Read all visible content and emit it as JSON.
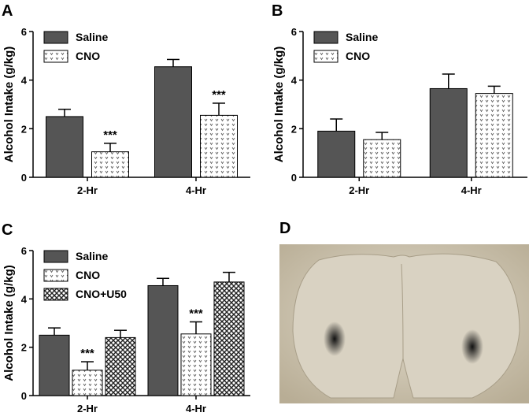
{
  "chart_data": [
    {
      "type": "bar",
      "panel_label": "A",
      "y_label": "Alcohol Intake (g/kg)",
      "categories": [
        "2-Hr",
        "4-Hr"
      ],
      "series": [
        {
          "name": "Saline",
          "color": "#555555",
          "pattern": "solid",
          "values": [
            2.5,
            4.55
          ],
          "errors": [
            0.3,
            0.3
          ]
        },
        {
          "name": "CNO",
          "color": "#ffffff",
          "pattern": "dots",
          "values": [
            1.05,
            2.55
          ],
          "errors": [
            0.35,
            0.5
          ]
        }
      ],
      "annotations": [
        {
          "series": 1,
          "category": 0,
          "text": "***"
        },
        {
          "series": 1,
          "category": 1,
          "text": "***"
        }
      ],
      "ylim": [
        0,
        6
      ],
      "yticks": [
        0,
        2,
        4,
        6
      ],
      "legend": "upper left"
    },
    {
      "type": "bar",
      "panel_label": "B",
      "y_label": "Alcohol Intake (g/kg)",
      "categories": [
        "2-Hr",
        "4-Hr"
      ],
      "series": [
        {
          "name": "Saline",
          "color": "#555555",
          "pattern": "solid",
          "values": [
            1.9,
            3.65
          ],
          "errors": [
            0.5,
            0.6
          ]
        },
        {
          "name": "CNO",
          "color": "#ffffff",
          "pattern": "dots",
          "values": [
            1.55,
            3.45
          ],
          "errors": [
            0.3,
            0.3
          ]
        }
      ],
      "annotations": [],
      "ylim": [
        0,
        6
      ],
      "yticks": [
        0,
        2,
        4,
        6
      ],
      "legend": "upper left"
    },
    {
      "type": "bar",
      "panel_label": "C",
      "y_label": "Alcohol Intake (g/kg)",
      "categories": [
        "2-Hr",
        "4-Hr"
      ],
      "series": [
        {
          "name": "Saline",
          "color": "#555555",
          "pattern": "solid",
          "values": [
            2.5,
            4.55
          ],
          "errors": [
            0.3,
            0.3
          ]
        },
        {
          "name": "CNO",
          "color": "#ffffff",
          "pattern": "dots",
          "values": [
            1.05,
            2.55
          ],
          "errors": [
            0.35,
            0.5
          ]
        },
        {
          "name": "CNO+U50",
          "color": "#ffffff",
          "pattern": "crosshatch",
          "values": [
            2.4,
            4.7
          ],
          "errors": [
            0.3,
            0.4
          ]
        }
      ],
      "annotations": [
        {
          "series": 1,
          "category": 0,
          "text": "***"
        },
        {
          "series": 1,
          "category": 1,
          "text": "***"
        }
      ],
      "ylim": [
        0,
        6
      ],
      "yticks": [
        0,
        2,
        4,
        6
      ],
      "legend": "upper left"
    }
  ],
  "image_panel": {
    "panel_label": "D"
  }
}
